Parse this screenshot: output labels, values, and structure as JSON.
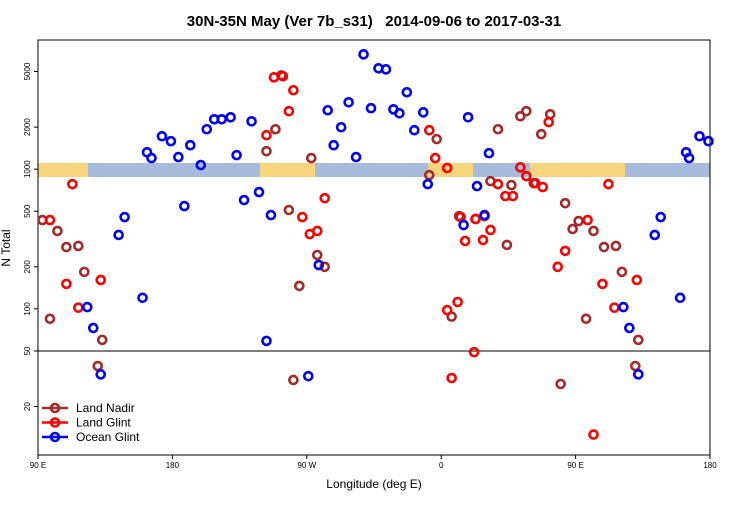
{
  "chart_data": {
    "type": "scatter",
    "title": "30N-35N May (Ver 7b_s31)   2014-09-06 to 2017-03-31",
    "x_label": "Longitude (deg E)",
    "y_label": "N Total",
    "log_y": true,
    "hline": 50,
    "legend": "lower left",
    "xlim": [
      90,
      540
    ],
    "xticks": [
      {
        "value": 90,
        "label": "90 E"
      },
      {
        "value": 180,
        "label": "180"
      },
      {
        "value": 270,
        "label": "90 W"
      },
      {
        "value": 360,
        "label": "0"
      },
      {
        "value": 450,
        "label": "90 E"
      },
      {
        "value": 540,
        "label": "180"
      }
    ],
    "ylim": [
      9,
      8400
    ],
    "yticks": [
      20,
      50,
      100,
      200,
      500,
      1000,
      2000,
      5000
    ],
    "series": [
      {
        "name": "Land Nadir",
        "color": "#a52a2a",
        "x": [
          93,
          98,
          103,
          109,
          117,
          121,
          133,
          130,
          243,
          249,
          253,
          258,
          265,
          273,
          277,
          282,
          261,
          352,
          357,
          367,
          372,
          383,
          389,
          393,
          398,
          404,
          407,
          413,
          417,
          422,
          427,
          433,
          443,
          440,
          448,
          452,
          457,
          462,
          469,
          477,
          481,
          490,
          492
        ],
        "values": [
          432,
          85,
          361,
          277,
          282,
          184,
          60,
          39,
          1345,
          1930,
          4690,
          510,
          146,
          1200,
          243,
          200,
          31,
          906,
          1640,
          88,
          461,
          440,
          461,
          821,
          1930,
          287,
          769,
          2390,
          2600,
          794,
          1780,
          2470,
          571,
          29,
          373,
          425,
          85,
          361,
          277,
          282,
          184,
          39,
          60
        ]
      },
      {
        "name": "Land Glint",
        "color": "#ff0000",
        "x": [
          98,
          113,
          109,
          117,
          132,
          243,
          248,
          254,
          258,
          261,
          267,
          272,
          277,
          282,
          352,
          356,
          364,
          364,
          367,
          371,
          373,
          376,
          382,
          383,
          388,
          393,
          398,
          403,
          408,
          413,
          417,
          423,
          428,
          432,
          438,
          443,
          458,
          462,
          468,
          472,
          476,
          491
        ],
        "values": [
          432,
          781,
          151,
          102,
          161,
          1750,
          4540,
          4620,
          2600,
          3670,
          454,
          343,
          361,
          620,
          1900,
          1200,
          1020,
          98,
          32,
          112,
          454,
          306,
          49,
          440,
          311,
          367,
          781,
          641,
          641,
          1030,
          891,
          794,
          744,
          2170,
          200,
          260,
          432,
          12.6,
          151,
          781,
          102,
          161
        ]
      },
      {
        "name": "Ocean Glint",
        "color": "#0000ff",
        "x": [
          123,
          127,
          132,
          144,
          148,
          160,
          163,
          166,
          173,
          179,
          184,
          188,
          192,
          199,
          203,
          208,
          213,
          219,
          223,
          228,
          233,
          238,
          243,
          246,
          271,
          278,
          284,
          288,
          293,
          298,
          303,
          308,
          313,
          318,
          323,
          328,
          332,
          337,
          342,
          348,
          351,
          375,
          378,
          384,
          389,
          392,
          482,
          486,
          492,
          503,
          507,
          520,
          524,
          526,
          533,
          539
        ],
        "values": [
          103,
          73,
          34,
          338,
          454,
          120,
          1320,
          1200,
          1720,
          1585,
          1220,
          544,
          1484,
          1070,
          1930,
          2275,
          2275,
          2350,
          1260,
          601,
          2200,
          685,
          59,
          469,
          33,
          206,
          2640,
          1484,
          1995,
          3010,
          1220,
          6630,
          2730,
          5270,
          5180,
          2680,
          2510,
          3550,
          1900,
          2550,
          781,
          398,
          2350,
          756,
          469,
          1300,
          103,
          73,
          34,
          338,
          454,
          120,
          1320,
          1200,
          1720,
          1585
        ]
      }
    ]
  }
}
